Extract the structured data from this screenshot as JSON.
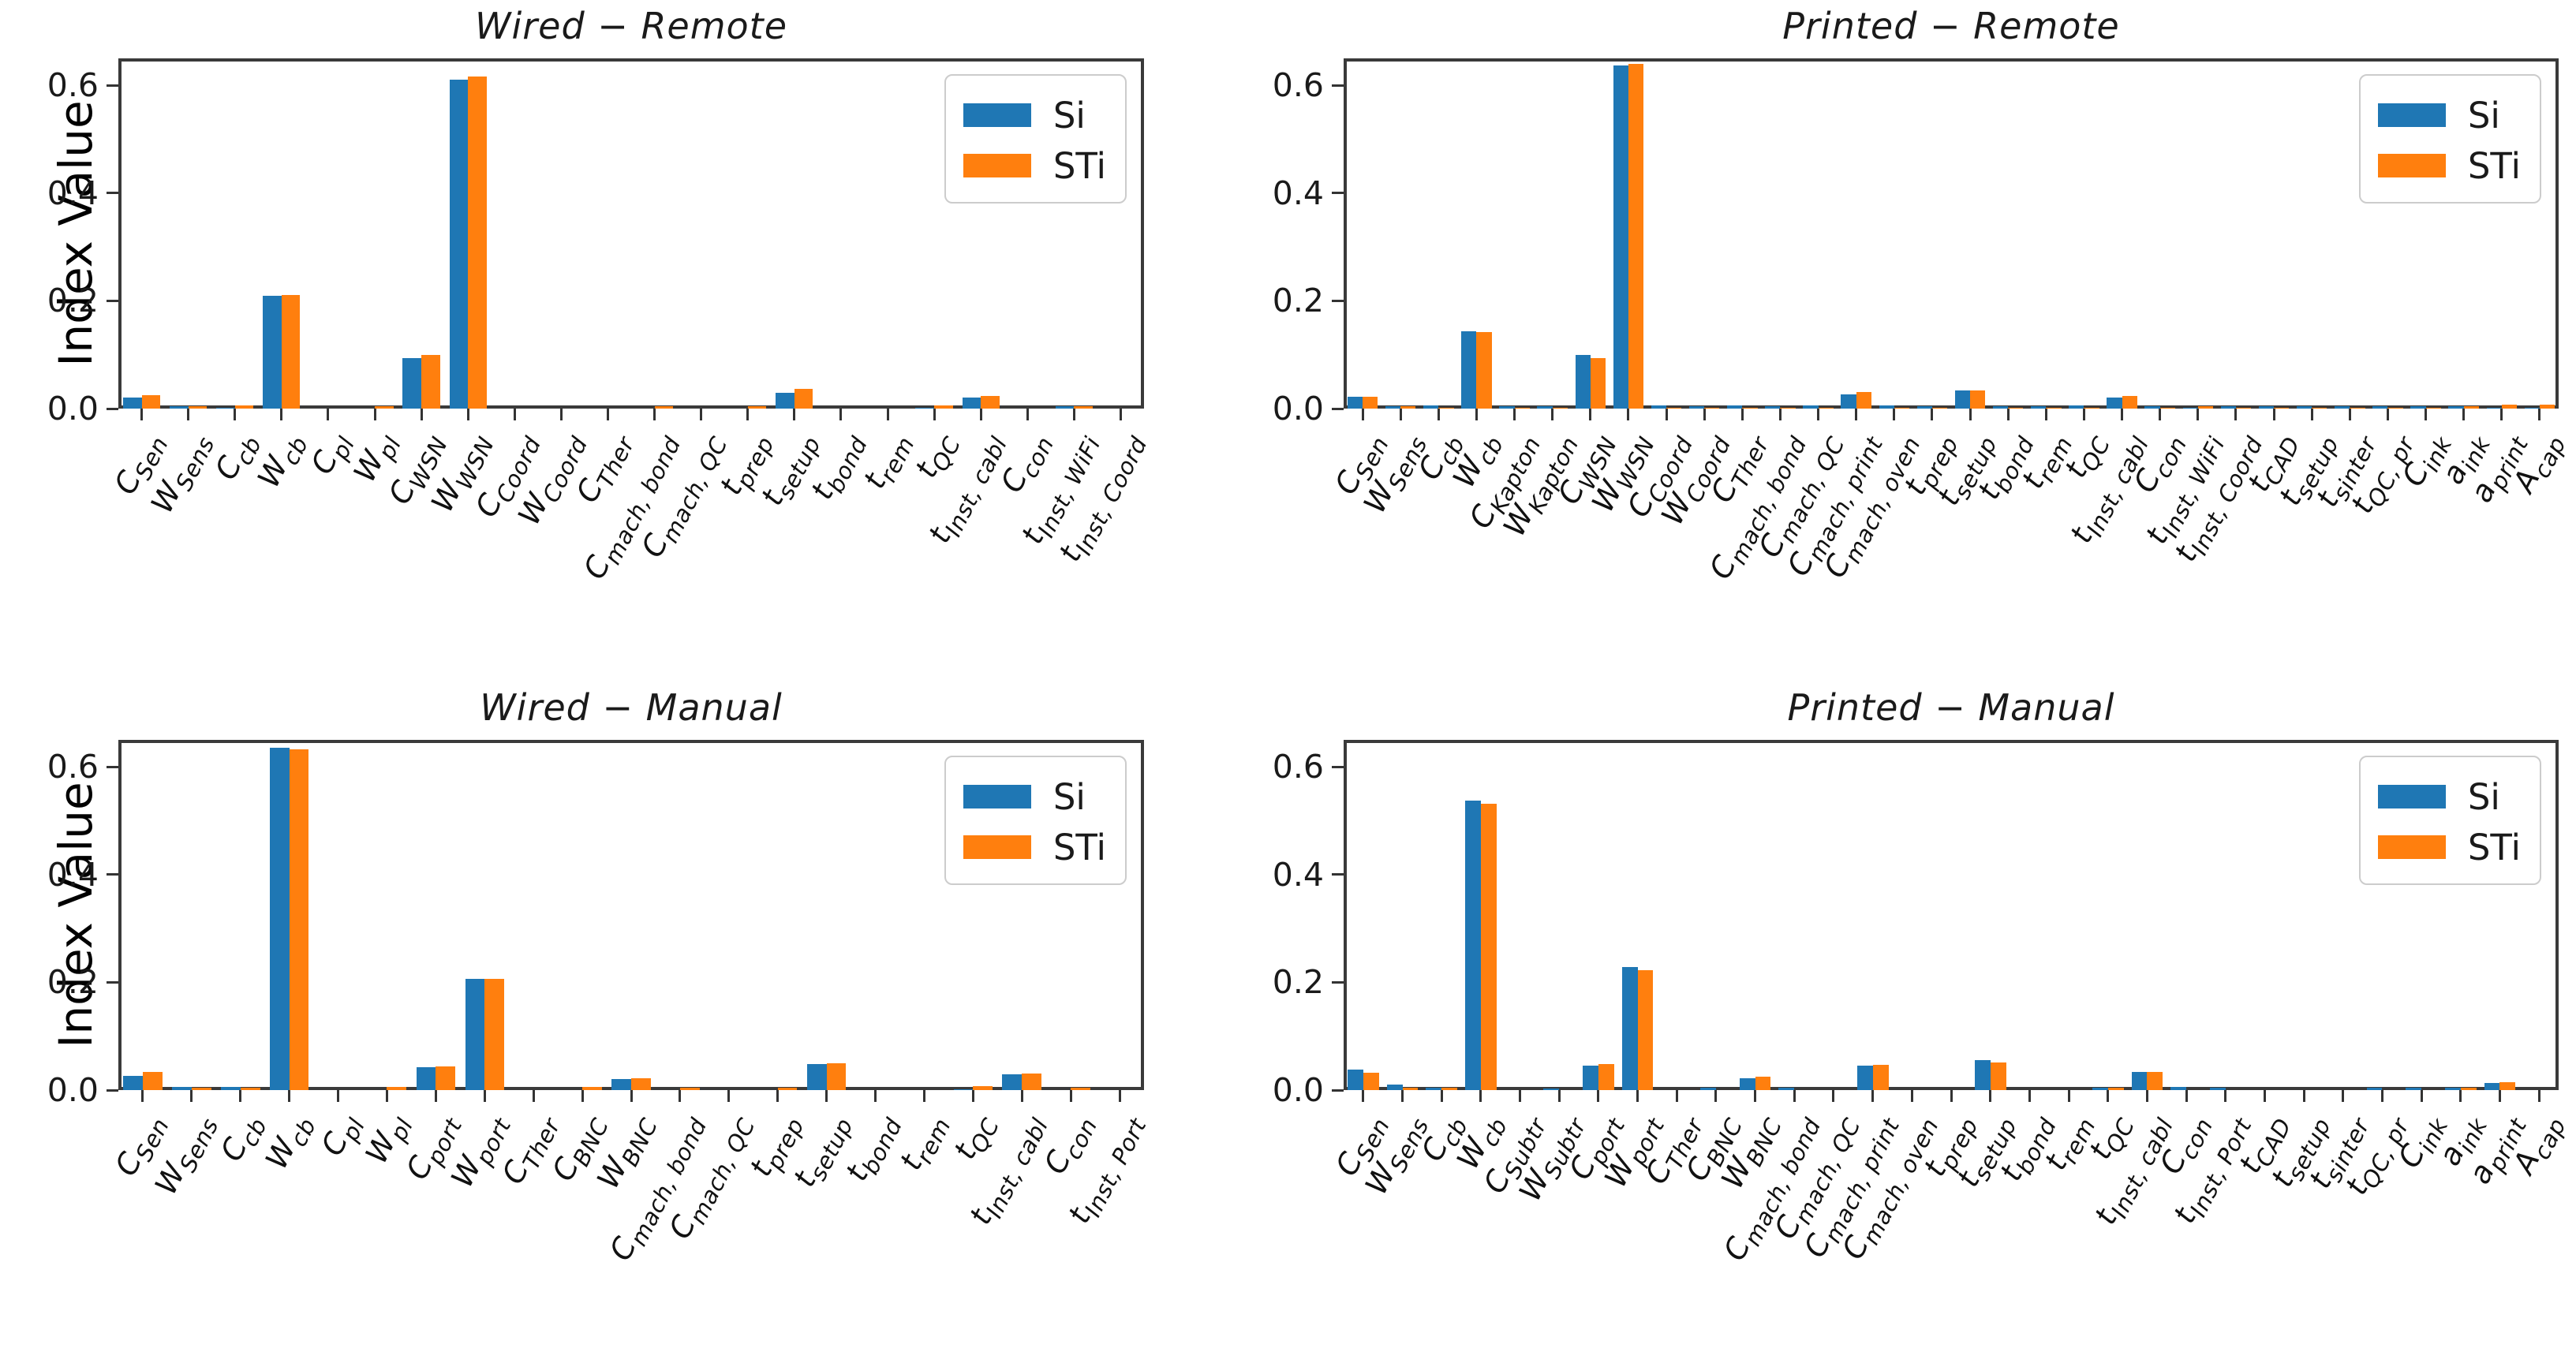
{
  "figure": {
    "ylabel": "Index Value",
    "ytick_labels": [
      "0.0",
      "0.2",
      "0.4",
      "0.6"
    ],
    "series_colors": {
      "Si": "#1f77b4",
      "STi": "#ff7f0e"
    },
    "legend": {
      "si_label": "Si",
      "sti_label": "STi"
    }
  },
  "chart_data": [
    {
      "type": "bar",
      "title": "Wired − Remote",
      "ylabel": "Index Value",
      "show_ylabel": true,
      "ylim": [
        0,
        0.65
      ],
      "yticks": [
        0,
        0.2,
        0.4,
        0.6
      ],
      "legend_position": "upper right",
      "grid": false,
      "categories": [
        [
          "C",
          "Sen"
        ],
        [
          "W",
          "Sens"
        ],
        [
          "C",
          "cb"
        ],
        [
          "W",
          "cb"
        ],
        [
          "C",
          "pl"
        ],
        [
          "W",
          "pl"
        ],
        [
          "C",
          "WSN"
        ],
        [
          "W",
          "WSN"
        ],
        [
          "C",
          "Coord"
        ],
        [
          "W",
          "Coord"
        ],
        [
          "C",
          "Ther"
        ],
        [
          "C",
          "mach, bond"
        ],
        [
          "C",
          "mach, QC"
        ],
        [
          "t",
          "prep"
        ],
        [
          "t",
          "setup"
        ],
        [
          "t",
          "bond"
        ],
        [
          "t",
          "rem"
        ],
        [
          "t",
          "QC"
        ],
        [
          "t",
          "Inst, cabl"
        ],
        [
          "C",
          "con"
        ],
        [
          "t",
          "Inst, WiFi"
        ],
        [
          "t",
          "Inst, Coord"
        ]
      ],
      "series": [
        {
          "name": "Si",
          "values": [
            0.02,
            0.004,
            0.002,
            0.21,
            0,
            0,
            0.094,
            0.61,
            0,
            0,
            0,
            0,
            0,
            0,
            0.03,
            0,
            0,
            0.002,
            0.02,
            0,
            0.004,
            0
          ]
        },
        {
          "name": "STi",
          "values": [
            0.025,
            0.004,
            0.006,
            0.211,
            0,
            0.005,
            0.099,
            0.616,
            0,
            0,
            0,
            0.005,
            0,
            0.005,
            0.036,
            0,
            0,
            0.006,
            0.024,
            0,
            0.005,
            0
          ]
        }
      ]
    },
    {
      "type": "bar",
      "title": "Printed − Remote",
      "show_ylabel": false,
      "ylim": [
        0,
        0.65
      ],
      "yticks": [
        0,
        0.2,
        0.4,
        0.6
      ],
      "legend_position": "upper right",
      "grid": false,
      "categories": [
        [
          "C",
          "Sen"
        ],
        [
          "W",
          "Sens"
        ],
        [
          "C",
          "cb"
        ],
        [
          "W",
          "cb"
        ],
        [
          "C",
          "Kapton"
        ],
        [
          "W",
          "Kapton"
        ],
        [
          "C",
          "WSN"
        ],
        [
          "W",
          "WSN"
        ],
        [
          "C",
          "Coord"
        ],
        [
          "W",
          "Coord"
        ],
        [
          "C",
          "Ther"
        ],
        [
          "C",
          "mach, bond"
        ],
        [
          "C",
          "mach, QC"
        ],
        [
          "C",
          "mach, print"
        ],
        [
          "C",
          "mach, oven"
        ],
        [
          "t",
          "prep"
        ],
        [
          "t",
          "setup"
        ],
        [
          "t",
          "bond"
        ],
        [
          "t",
          "rem"
        ],
        [
          "t",
          "QC"
        ],
        [
          "t",
          "Inst, cabl"
        ],
        [
          "C",
          "con"
        ],
        [
          "t",
          "Inst, WiFi"
        ],
        [
          "t",
          "Inst, Coord"
        ],
        [
          "t",
          "CAD"
        ],
        [
          "t",
          "setup"
        ],
        [
          "t",
          "sinter"
        ],
        [
          "t",
          "QC, pr"
        ],
        [
          "C",
          "ink"
        ],
        [
          "a",
          "ink"
        ],
        [
          "a",
          "print"
        ],
        [
          "A",
          "cap"
        ]
      ],
      "series": [
        {
          "name": "Si",
          "values": [
            0.022,
            0.005,
            0.006,
            0.143,
            0.005,
            0.005,
            0.1,
            0.637,
            0.006,
            0.005,
            0.006,
            0.005,
            0.006,
            0.026,
            0.006,
            0.005,
            0.033,
            0.004,
            0.005,
            0.006,
            0.021,
            0.005,
            0.002,
            0.004,
            0.005,
            0.005,
            0.004,
            0.005,
            0.004,
            0.004,
            0.002,
            0.002
          ]
        },
        {
          "name": "STi",
          "values": [
            0.022,
            0.004,
            0.002,
            0.142,
            0.002,
            0.002,
            0.094,
            0.64,
            0.002,
            0.002,
            0.002,
            0.002,
            0.002,
            0.031,
            0.002,
            0.002,
            0.034,
            0.002,
            0.002,
            0.002,
            0.023,
            0.002,
            0.005,
            0.002,
            0.002,
            0.002,
            0.002,
            0.002,
            0.002,
            0.004,
            0.007,
            0.007
          ]
        }
      ]
    },
    {
      "type": "bar",
      "title": "Wired − Manual",
      "ylabel": "Index Value",
      "show_ylabel": true,
      "ylim": [
        0,
        0.65
      ],
      "yticks": [
        0,
        0.2,
        0.4,
        0.6
      ],
      "legend_position": "upper right",
      "grid": false,
      "categories": [
        [
          "C",
          "Sen"
        ],
        [
          "W",
          "Sens"
        ],
        [
          "C",
          "cb"
        ],
        [
          "W",
          "cb"
        ],
        [
          "C",
          "pl"
        ],
        [
          "W",
          "pl"
        ],
        [
          "C",
          "port"
        ],
        [
          "W",
          "port"
        ],
        [
          "C",
          "Ther"
        ],
        [
          "C",
          "BNC"
        ],
        [
          "W",
          "BNC"
        ],
        [
          "C",
          "mach, bond"
        ],
        [
          "C",
          "mach, QC"
        ],
        [
          "t",
          "prep"
        ],
        [
          "t",
          "setup"
        ],
        [
          "t",
          "bond"
        ],
        [
          "t",
          "rem"
        ],
        [
          "t",
          "QC"
        ],
        [
          "t",
          "Inst, cabl"
        ],
        [
          "C",
          "con"
        ],
        [
          "t",
          "Inst, Port"
        ]
      ],
      "series": [
        {
          "name": "Si",
          "values": [
            0.027,
            0.006,
            0.006,
            0.635,
            0,
            0,
            0.043,
            0.207,
            0,
            0,
            0.02,
            0,
            0,
            0,
            0.048,
            0,
            0,
            0.002,
            0.029,
            0,
            0
          ]
        },
        {
          "name": "STi",
          "values": [
            0.034,
            0.005,
            0.005,
            0.632,
            0,
            0.006,
            0.044,
            0.206,
            0,
            0.006,
            0.022,
            0.005,
            0,
            0.005,
            0.05,
            0,
            0,
            0.007,
            0.031,
            0.005,
            0
          ]
        }
      ]
    },
    {
      "type": "bar",
      "title": "Printed − Manual",
      "show_ylabel": false,
      "ylim": [
        0,
        0.65
      ],
      "yticks": [
        0,
        0.2,
        0.4,
        0.6
      ],
      "legend_position": "upper right",
      "grid": false,
      "categories": [
        [
          "C",
          "Sen"
        ],
        [
          "W",
          "Sens"
        ],
        [
          "C",
          "cb"
        ],
        [
          "W",
          "cb"
        ],
        [
          "C",
          "Subtr"
        ],
        [
          "W",
          "Subtr"
        ],
        [
          "C",
          "port"
        ],
        [
          "W",
          "port"
        ],
        [
          "C",
          "Ther"
        ],
        [
          "C",
          "BNC"
        ],
        [
          "W",
          "BNC"
        ],
        [
          "C",
          "mach, bond"
        ],
        [
          "C",
          "mach, QC"
        ],
        [
          "C",
          "mach, print"
        ],
        [
          "C",
          "mach, oven"
        ],
        [
          "t",
          "prep"
        ],
        [
          "t",
          "setup"
        ],
        [
          "t",
          "bond"
        ],
        [
          "t",
          "rem"
        ],
        [
          "t",
          "QC"
        ],
        [
          "t",
          "Inst, cabl"
        ],
        [
          "C",
          "con"
        ],
        [
          "t",
          "Inst, Port"
        ],
        [
          "t",
          "CAD"
        ],
        [
          "t",
          "setup"
        ],
        [
          "t",
          "sinter"
        ],
        [
          "t",
          "QC, pr"
        ],
        [
          "C",
          "ink"
        ],
        [
          "a",
          "ink"
        ],
        [
          "a",
          "print"
        ],
        [
          "A",
          "cap"
        ]
      ],
      "series": [
        {
          "name": "Si",
          "values": [
            0.038,
            0.01,
            0.005,
            0.538,
            0,
            0.003,
            0.046,
            0.228,
            0,
            0.004,
            0.022,
            0.004,
            0,
            0.046,
            0,
            0,
            0.055,
            0,
            0,
            0.005,
            0.033,
            0.006,
            0.005,
            0,
            0,
            0,
            0.004,
            0.005,
            0.004,
            0.013,
            0
          ]
        },
        {
          "name": "STi",
          "values": [
            0.032,
            0.004,
            0.004,
            0.532,
            0,
            0,
            0.048,
            0.222,
            0,
            0,
            0.025,
            0,
            0,
            0.047,
            0,
            0,
            0.051,
            0,
            0,
            0.005,
            0.034,
            0,
            0,
            0,
            0,
            0,
            0,
            0,
            0.004,
            0.014,
            0
          ]
        }
      ]
    }
  ]
}
